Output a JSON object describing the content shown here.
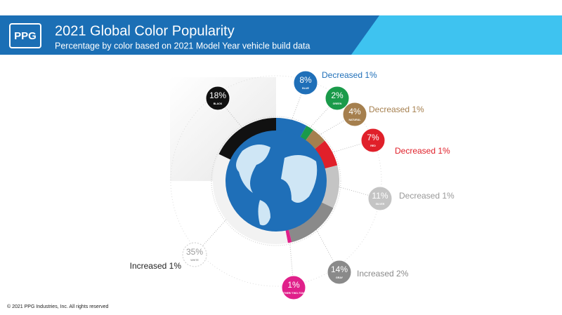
{
  "logo": "PPG",
  "footer": "© 2021 PPG Industries, Inc. All rights reserved",
  "chart_data": {
    "type": "donut",
    "title": "2021 Global Color Popularity",
    "subtitle": "Percentage by color based on 2021 Model Year vehicle build data",
    "categories": [
      "BLUE",
      "GREEN",
      "NATURAL",
      "RED",
      "SILVER",
      "GRAY",
      "OTHER/ TWO-TONE",
      "WHITE",
      "BLACK"
    ],
    "values": [
      8,
      2,
      4,
      7,
      11,
      14,
      1,
      35,
      18
    ],
    "value_labels": [
      "8%",
      "2%",
      "4%",
      "7%",
      "11%",
      "14%",
      "1%",
      "35%",
      "18%"
    ],
    "changes": [
      "Decreased 1%",
      null,
      "Decreased 1%",
      "Decreased 1%",
      "Decreased 1%",
      "Increased 2%",
      null,
      "Increased 1%",
      null
    ],
    "colors": [
      "#1f6fb8",
      "#1a9a4a",
      "#a57f4e",
      "#e0202a",
      "#c4c4c4",
      "#8a8a8a",
      "#e0208a",
      "#f2f2f2",
      "#111111"
    ]
  }
}
